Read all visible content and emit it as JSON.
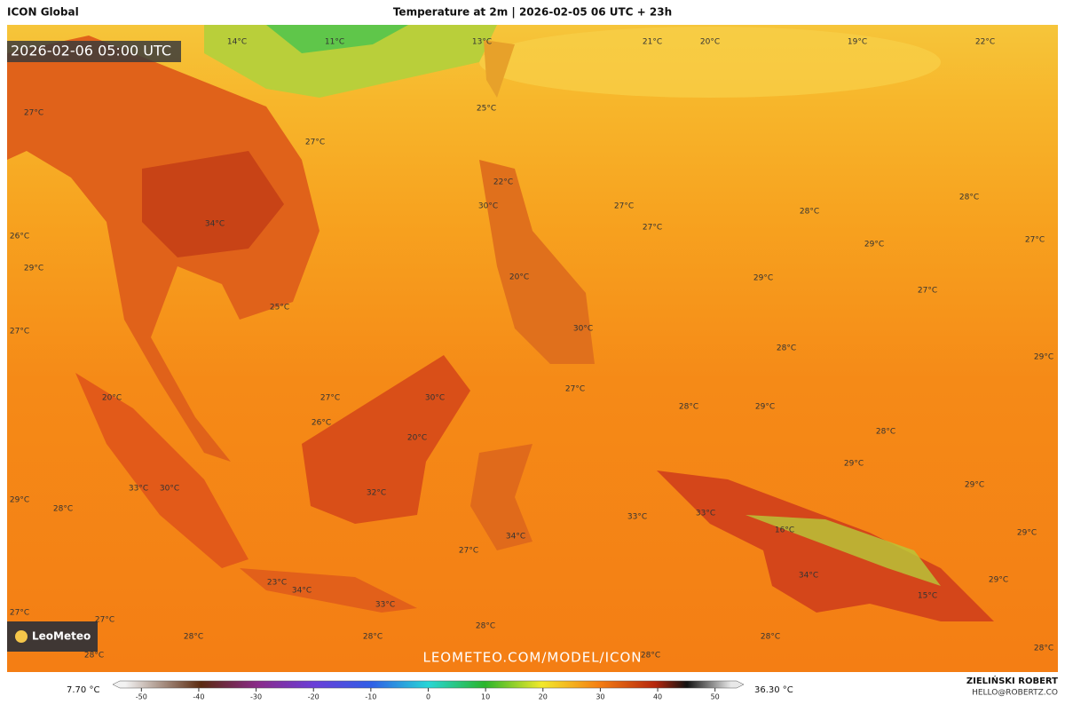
{
  "header": {
    "model": "ICON Global",
    "title": "Temperature at 2m | 2026-02-05 06 UTC + 23h"
  },
  "map": {
    "timestamp": "2026-02-06 05:00 UTC",
    "watermark": "LEOMETEO.COM/MODEL/ICON",
    "logo": "LeoMeteo",
    "labels": [
      "14°C",
      "11°C",
      "13°C",
      "21°C",
      "20°C",
      "19°C",
      "22°C",
      "27°C",
      "25°C",
      "27°C",
      "22°C",
      "30°C",
      "34°C",
      "27°C",
      "28°C",
      "28°C",
      "27°C",
      "26°C",
      "29°C",
      "27°C",
      "29°C",
      "20°C",
      "29°C",
      "27°C",
      "25°C",
      "30°C",
      "27°C",
      "28°C",
      "29°C",
      "27°C",
      "20°C",
      "27°C",
      "30°C",
      "28°C",
      "29°C",
      "26°C",
      "20°C",
      "28°C",
      "29°C",
      "29°C",
      "33°C",
      "30°C",
      "32°C",
      "29°C",
      "28°C",
      "33°C",
      "33°C",
      "16°C",
      "29°C",
      "34°C",
      "27°C",
      "34°C",
      "23°C",
      "34°C",
      "29°C",
      "15°C",
      "33°C",
      "27°C",
      "27°C",
      "28°C",
      "28°C",
      "28°C",
      "28°C",
      "28°C",
      "28°C",
      "28°C"
    ]
  },
  "legend": {
    "min": "7.70 °C",
    "max": "36.30 °C",
    "xlim": [
      -55,
      55
    ],
    "ticks": [
      -50,
      -40,
      -30,
      -20,
      -10,
      0,
      10,
      20,
      30,
      40,
      50
    ]
  },
  "credits": {
    "author": "ZIELIŃSKI ROBERT",
    "email": "HELLO@ROBERTZ.CO"
  }
}
